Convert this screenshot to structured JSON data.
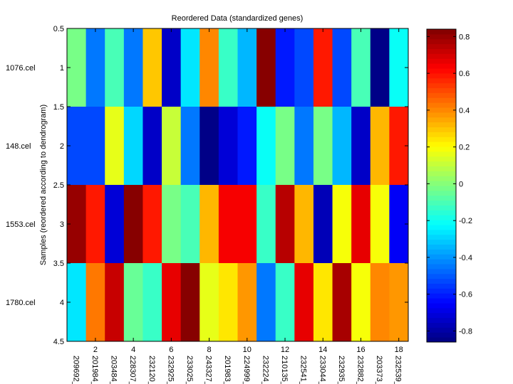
{
  "chart_data": {
    "type": "heatmap",
    "title": "Reordered Data (standardized genes)",
    "xlabel": "",
    "ylabel": "Samples (reordered according to dendrogram)",
    "xlim": [
      0.5,
      18.5
    ],
    "ylim": [
      0.5,
      4.5
    ],
    "x_ticks": [
      2,
      4,
      6,
      8,
      10,
      12,
      14,
      16,
      18
    ],
    "y_ticks": [
      0.5,
      1,
      1.5,
      2,
      2.5,
      3,
      3.5,
      4,
      4.5
    ],
    "columns": [
      "209692_",
      "201984_",
      "203484_",
      "228307_",
      "232120_",
      "232925_",
      "233025_",
      "243327_",
      "201983_",
      "224999_",
      "232224_",
      "210135_",
      "232541_",
      "233044_",
      "232935_",
      "232882_",
      "203373_",
      "232539_"
    ],
    "rows": [
      "1076.cel",
      "148.cel",
      "1553.cel",
      "1780.cel"
    ],
    "values": [
      [
        -0.01,
        -0.46,
        -0.1,
        -0.435,
        0.29,
        -0.73,
        -0.27,
        0.415,
        -0.12,
        -0.355,
        0.84,
        -0.62,
        -0.515,
        0.6,
        -0.515,
        -0.1,
        -0.86,
        -0.22
      ],
      [
        -0.515,
        -0.515,
        0.15,
        -0.3,
        -0.73,
        0.12,
        -0.46,
        -0.86,
        -0.72,
        -0.595,
        -0.22,
        -0.035,
        -0.46,
        -0.01,
        -0.33,
        -0.73,
        0.335,
        0.6
      ],
      [
        0.81,
        0.575,
        -0.72,
        0.84,
        0.575,
        -0.035,
        -0.1,
        0.335,
        0.63,
        0.63,
        -0.12,
        0.755,
        0.335,
        -0.77,
        0.18,
        0.68,
        0.18,
        -0.66
      ],
      [
        -0.27,
        0.44,
        0.71,
        -0.06,
        -0.12,
        0.68,
        0.84,
        0.15,
        0.255,
        0.365,
        -0.46,
        -0.12,
        0.68,
        0.23,
        0.77,
        0.2,
        0.39,
        0.365
      ]
    ],
    "colormap": "jet",
    "clim": [
      -0.86,
      0.84
    ],
    "colorbar": {
      "ticks": [
        -0.8,
        -0.6,
        -0.4,
        -0.2,
        0,
        0.2,
        0.4,
        0.6,
        0.8
      ],
      "tick_labels": [
        "-0.8",
        "-0.6",
        "-0.4",
        "-0.2",
        "0",
        "0.2",
        "0.4",
        "0.6",
        "0.8"
      ],
      "placement": "right"
    },
    "grid": false
  }
}
